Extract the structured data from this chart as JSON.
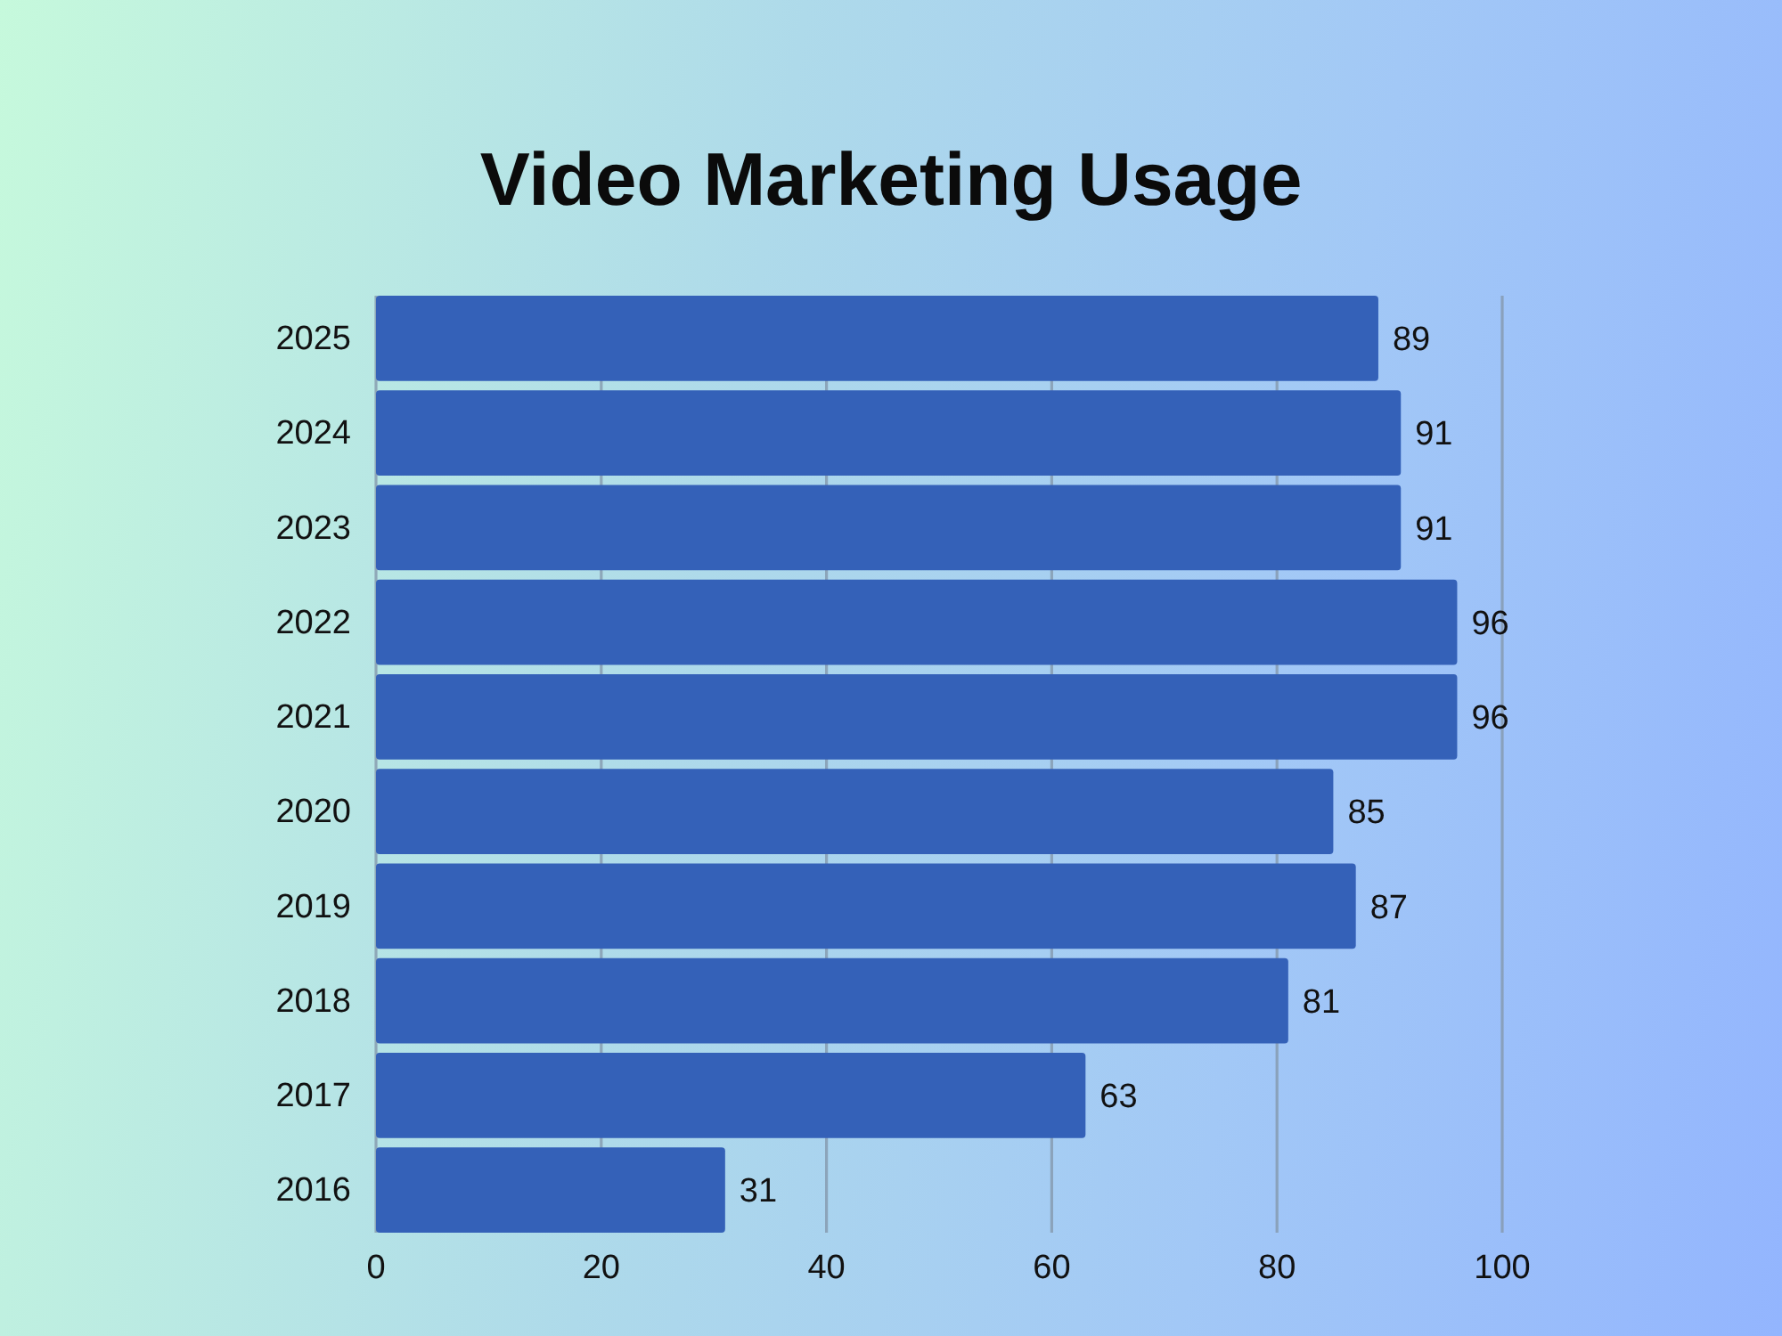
{
  "chart_data": {
    "type": "bar",
    "title": "Video Marketing Usage",
    "orientation": "horizontal",
    "categories": [
      "2025",
      "2024",
      "2023",
      "2022",
      "2021",
      "2020",
      "2019",
      "2018",
      "2017",
      "2016"
    ],
    "values": [
      89,
      91,
      91,
      96,
      96,
      85,
      87,
      81,
      63,
      31
    ],
    "color": "#3461b8",
    "xlim": [
      0,
      100
    ],
    "xticks": [
      0,
      20,
      40,
      60,
      80,
      100
    ],
    "grid": "x",
    "data_labels": true
  }
}
